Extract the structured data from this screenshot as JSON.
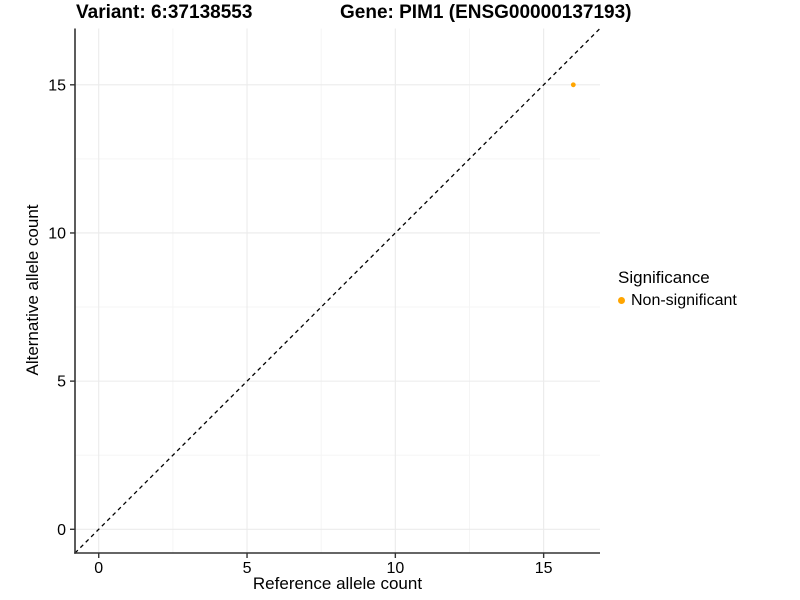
{
  "chart_data": {
    "type": "scatter",
    "title_left": "Variant: 6:37138553",
    "title_right": "Gene: PIM1 (ENSG00000137193)",
    "xlabel": "Reference allele count",
    "ylabel": "Alternative allele count",
    "xlim": [
      -0.8,
      16.9
    ],
    "ylim": [
      -0.8,
      16.9
    ],
    "x_ticks": [
      0,
      5,
      10,
      15
    ],
    "y_ticks": [
      0,
      5,
      10,
      15
    ],
    "minor_gridlines": [
      2.5,
      7.5,
      12.5
    ],
    "grid": true,
    "identity_line": {
      "style": "dashed",
      "slope": 1,
      "intercept": 0,
      "color": "#000000"
    },
    "series": [
      {
        "name": "Non-significant",
        "color": "#FFA500",
        "points": [
          [
            16,
            15
          ]
        ]
      }
    ],
    "legend": {
      "title": "Significance",
      "position": "right",
      "items": [
        {
          "label": "Non-significant",
          "color": "#FFA500"
        }
      ]
    }
  },
  "style": {
    "background": "#FFFFFF",
    "axis_color": "#333333",
    "tick_label_color": "#000000",
    "grid_major_color": "#EBEBEB",
    "grid_minor_color": "#F5F5F5"
  }
}
